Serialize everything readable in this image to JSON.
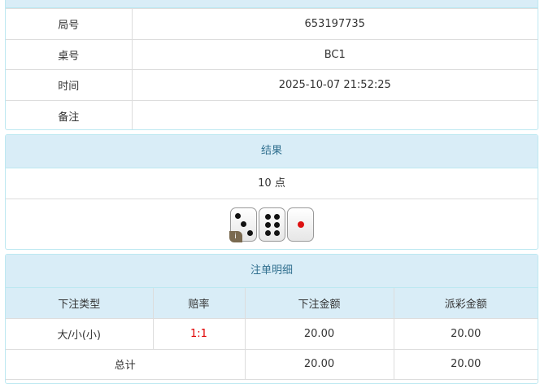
{
  "info": {
    "rows": [
      {
        "label": "局号",
        "value": "653197735"
      },
      {
        "label": "桌号",
        "value": "BC1"
      },
      {
        "label": "时间",
        "value": "2025-10-07 21:52:25"
      },
      {
        "label": "备注",
        "value": ""
      }
    ]
  },
  "result": {
    "title": "结果",
    "points": "10 点",
    "dice": [
      3,
      6,
      1
    ]
  },
  "bets": {
    "title": "注单明细",
    "headers": [
      "下注类型",
      "赔率",
      "下注金额",
      "派彩金额"
    ],
    "rows": [
      {
        "type": "大/小(小)",
        "odds": "1:1",
        "amount": "20.00",
        "payout": "20.00"
      }
    ],
    "total": {
      "label": "总计",
      "amount": "20.00",
      "payout": "20.00"
    },
    "odds_color": "#e00000"
  }
}
